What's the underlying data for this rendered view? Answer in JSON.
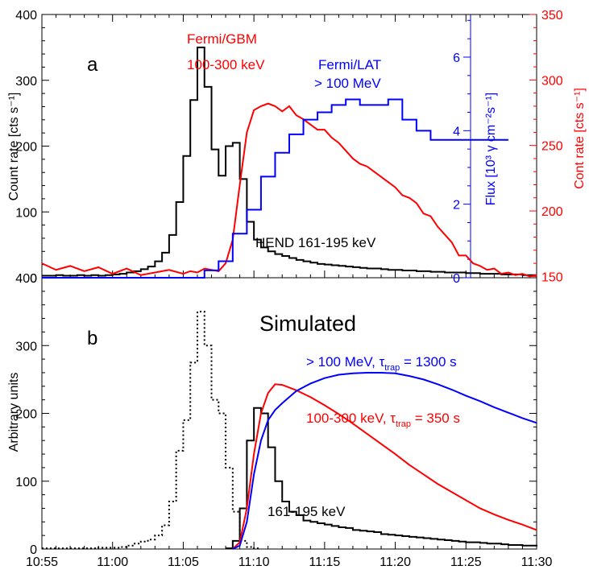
{
  "colors": {
    "black": "#000000",
    "red": "#ff0000",
    "blue": "#0000ff"
  },
  "chart_data": [
    {
      "panel": "a",
      "type": "line",
      "panel_label": "a",
      "x_unit": "minutes after 10:55 UT",
      "xlim": [
        0,
        35
      ],
      "ylabel": "Count rate [cts s⁻¹]",
      "ylim": [
        0,
        400
      ],
      "yticks": [
        0,
        100,
        200,
        300,
        400
      ],
      "y2label": "Flux [10³ γ cm⁻²s⁻¹]",
      "y2lim": [
        0,
        7.16
      ],
      "y2ticks": [
        "0",
        "2",
        "4",
        "6"
      ],
      "y2tick_values": [
        0,
        2,
        4,
        6
      ],
      "y3label": "Cont rate [cts s⁻¹]",
      "y3lim": [
        149,
        350
      ],
      "y3ticks": [
        150,
        200,
        250,
        300,
        350
      ],
      "annotations": [
        {
          "text": "Fermi/GBM",
          "color": "#ff0000"
        },
        {
          "text": "100-300 keV",
          "color": "#ff0000"
        },
        {
          "text": "Fermi/LAT",
          "color": "#0000ff"
        },
        {
          "text": "> 100 MeV",
          "color": "#0000ff"
        },
        {
          "text": "HEND  161-195 keV",
          "color": "#000000"
        }
      ],
      "series": [
        {
          "name": "HEND 161-195 keV",
          "axis": "left",
          "color": "#000000",
          "style": "step",
          "x": [
            0,
            0.5,
            1,
            1.5,
            2,
            2.5,
            3,
            3.5,
            4,
            4.5,
            5,
            5.5,
            6,
            6.5,
            7,
            7.5,
            8,
            8.5,
            9,
            9.5,
            10,
            10.5,
            11,
            11.5,
            12,
            12.5,
            13,
            13.5,
            14,
            14.5,
            15,
            15.5,
            16,
            16.5,
            17,
            17.5,
            18,
            18.5,
            19,
            19.5,
            20,
            20.5,
            21,
            21.5,
            22,
            22.5,
            23,
            23.5,
            24,
            24.5,
            25,
            25.5,
            26,
            26.5,
            27,
            27.5,
            28,
            28.5,
            29,
            29.5,
            30,
            30.5,
            31,
            31.5,
            32,
            32.5,
            33,
            33.5,
            34,
            34.5,
            35
          ],
          "y": [
            3,
            3,
            4,
            3,
            3,
            4,
            3,
            4,
            3,
            4,
            5,
            6,
            8,
            10,
            13,
            17,
            25,
            38,
            65,
            115,
            185,
            270,
            350,
            290,
            195,
            155,
            200,
            205,
            150,
            85,
            58,
            46,
            40,
            36,
            33,
            30,
            27,
            25,
            23,
            21,
            20,
            19,
            18,
            17,
            16,
            15,
            14,
            14,
            13,
            12,
            12,
            11,
            11,
            10,
            10,
            9,
            9,
            8,
            8,
            8,
            7,
            7,
            6,
            6,
            6,
            5,
            5,
            5,
            4,
            4,
            4
          ]
        },
        {
          "name": "Fermi/GBM 100-300 keV",
          "axis": "right",
          "color": "#ff0000",
          "style": "line",
          "x": [
            0,
            1,
            2,
            3,
            4,
            5,
            6,
            7,
            8,
            9,
            10,
            10.5,
            11,
            11.5,
            12,
            12.5,
            13,
            13.5,
            14,
            14.5,
            15,
            15.5,
            16,
            16.5,
            17,
            17.5,
            18,
            18.5,
            19,
            19.5,
            20,
            20.5,
            21,
            21.5,
            22,
            22.5,
            23,
            23.5,
            24,
            24.5,
            25,
            25.5,
            26,
            26.5,
            27,
            27.5,
            28,
            28.5,
            29,
            29.5,
            30,
            30.5,
            31,
            31.5,
            32,
            32.5,
            33,
            33.5,
            34,
            34.5,
            35
          ],
          "y": [
            160,
            155,
            158,
            154,
            157,
            152,
            156,
            151,
            153,
            155,
            152,
            154,
            153,
            156,
            155,
            154,
            160,
            178,
            220,
            260,
            277,
            280,
            282,
            280,
            276,
            280,
            273,
            270,
            266,
            262,
            262,
            256,
            252,
            246,
            240,
            236,
            234,
            230,
            226,
            222,
            218,
            212,
            210,
            206,
            198,
            196,
            188,
            182,
            176,
            166,
            166,
            160,
            158,
            155,
            156,
            152,
            153,
            151,
            152,
            150,
            151
          ]
        },
        {
          "name": "Fermi/LAT > 100 MeV",
          "axis": "right2",
          "color": "#0000ff",
          "style": "step",
          "x": [
            0,
            5.5,
            10,
            11.5,
            12.5,
            13.5,
            14.5,
            15.5,
            16.5,
            17.5,
            18.5,
            19.5,
            20.5,
            21.5,
            22.5,
            23.5,
            24.5,
            25.5,
            26.5,
            27.5
          ],
          "y": [
            0,
            0,
            0,
            0.2,
            0.45,
            1.2,
            1.85,
            2.75,
            3.4,
            3.9,
            4.3,
            4.5,
            4.7,
            4.85,
            4.7,
            4.7,
            4.85,
            4.3,
            4.0,
            3.75
          ]
        }
      ]
    },
    {
      "panel": "b",
      "type": "line",
      "panel_label": "b",
      "title": "Simulated",
      "x_unit": "minutes after 10:55 UT",
      "xlim": [
        0,
        35
      ],
      "xticks": [
        "10:55",
        "11:00",
        "11:05",
        "11:10",
        "11:15",
        "11:20",
        "11:25",
        "11:30"
      ],
      "ylabel": "Arbitrary units",
      "ylim": [
        0,
        400
      ],
      "yticks": [
        0,
        100,
        200,
        300,
        400
      ],
      "annotations": [
        {
          "text": "> 100 MeV, τ",
          "sub": "trap",
          "suffix": " = 1300 s",
          "color": "#0000ff"
        },
        {
          "text": "100-300 keV, τ",
          "sub": "trap",
          "suffix": " = 350 s",
          "color": "#ff0000"
        },
        {
          "text": "161-195 keV",
          "color": "#000000"
        }
      ],
      "series": [
        {
          "name": "HEND 161-195 keV (dotted)",
          "color": "#000000",
          "style": "step-dotted",
          "x": [
            0,
            0.5,
            1,
            1.5,
            2,
            2.5,
            3,
            3.5,
            4,
            4.5,
            5,
            5.5,
            6,
            6.5,
            7,
            7.5,
            8,
            8.5,
            9,
            9.5,
            10,
            10.5,
            11,
            11.5,
            12,
            12.5,
            13,
            13.5,
            14,
            14.5,
            15
          ],
          "y": [
            1,
            1,
            1,
            1,
            1,
            1,
            1,
            1,
            2,
            2,
            2,
            3,
            5,
            8,
            11,
            14,
            20,
            35,
            70,
            145,
            190,
            275,
            350,
            300,
            220,
            200,
            120,
            55,
            12,
            3,
            1
          ]
        },
        {
          "name": "161-195 keV",
          "color": "#000000",
          "style": "step",
          "x": [
            13,
            13.5,
            14,
            14.5,
            15,
            15.5,
            16,
            16.5,
            17,
            17.5,
            18,
            18.5,
            19,
            19.5,
            20,
            20.5,
            21,
            21.5,
            22,
            22.5,
            23,
            23.5,
            24,
            24.5,
            25,
            25.5,
            26,
            26.5,
            27,
            27.5,
            28,
            28.5,
            29,
            29.5,
            30,
            30.5,
            31,
            31.5,
            32,
            32.5,
            33,
            33.5,
            34,
            34.5,
            35
          ],
          "y": [
            1,
            12,
            60,
            160,
            208,
            200,
            150,
            100,
            70,
            55,
            50,
            42,
            40,
            38,
            36,
            34,
            32,
            31,
            28,
            27,
            26,
            25,
            22,
            21,
            20,
            19,
            18,
            17,
            16,
            15,
            14,
            13,
            12,
            11,
            10,
            10,
            9,
            8,
            8,
            7,
            6,
            6,
            5,
            5,
            4
          ]
        },
        {
          "name": "100-300 keV, tau_trap = 350 s",
          "color": "#ff0000",
          "style": "line",
          "x": [
            13.5,
            14,
            14.5,
            15,
            15.5,
            16,
            16.5,
            17,
            17.5,
            18,
            19,
            20,
            21,
            22,
            23,
            24,
            25,
            26,
            27,
            28,
            29,
            30,
            31,
            32,
            33,
            34,
            35
          ],
          "y": [
            0,
            10,
            60,
            140,
            200,
            230,
            243,
            242,
            238,
            234,
            224,
            212,
            199,
            185,
            170,
            155,
            140,
            124,
            110,
            96,
            84,
            72,
            60,
            51,
            43,
            36,
            28
          ]
        },
        {
          "name": "> 100 MeV, tau_trap = 1300 s",
          "color": "#0000ff",
          "style": "line",
          "x": [
            13.5,
            14,
            14.5,
            15,
            15.5,
            16,
            16.5,
            17,
            17.5,
            18,
            19,
            20,
            21,
            22,
            23,
            24,
            25,
            26,
            27,
            28,
            29,
            30,
            31,
            32,
            33,
            34,
            35
          ],
          "y": [
            0,
            5,
            40,
            110,
            160,
            190,
            205,
            215,
            224,
            233,
            244,
            252,
            257,
            259,
            260,
            260,
            259,
            255,
            250,
            243,
            235,
            226,
            218,
            209,
            201,
            193,
            186
          ]
        }
      ]
    }
  ]
}
